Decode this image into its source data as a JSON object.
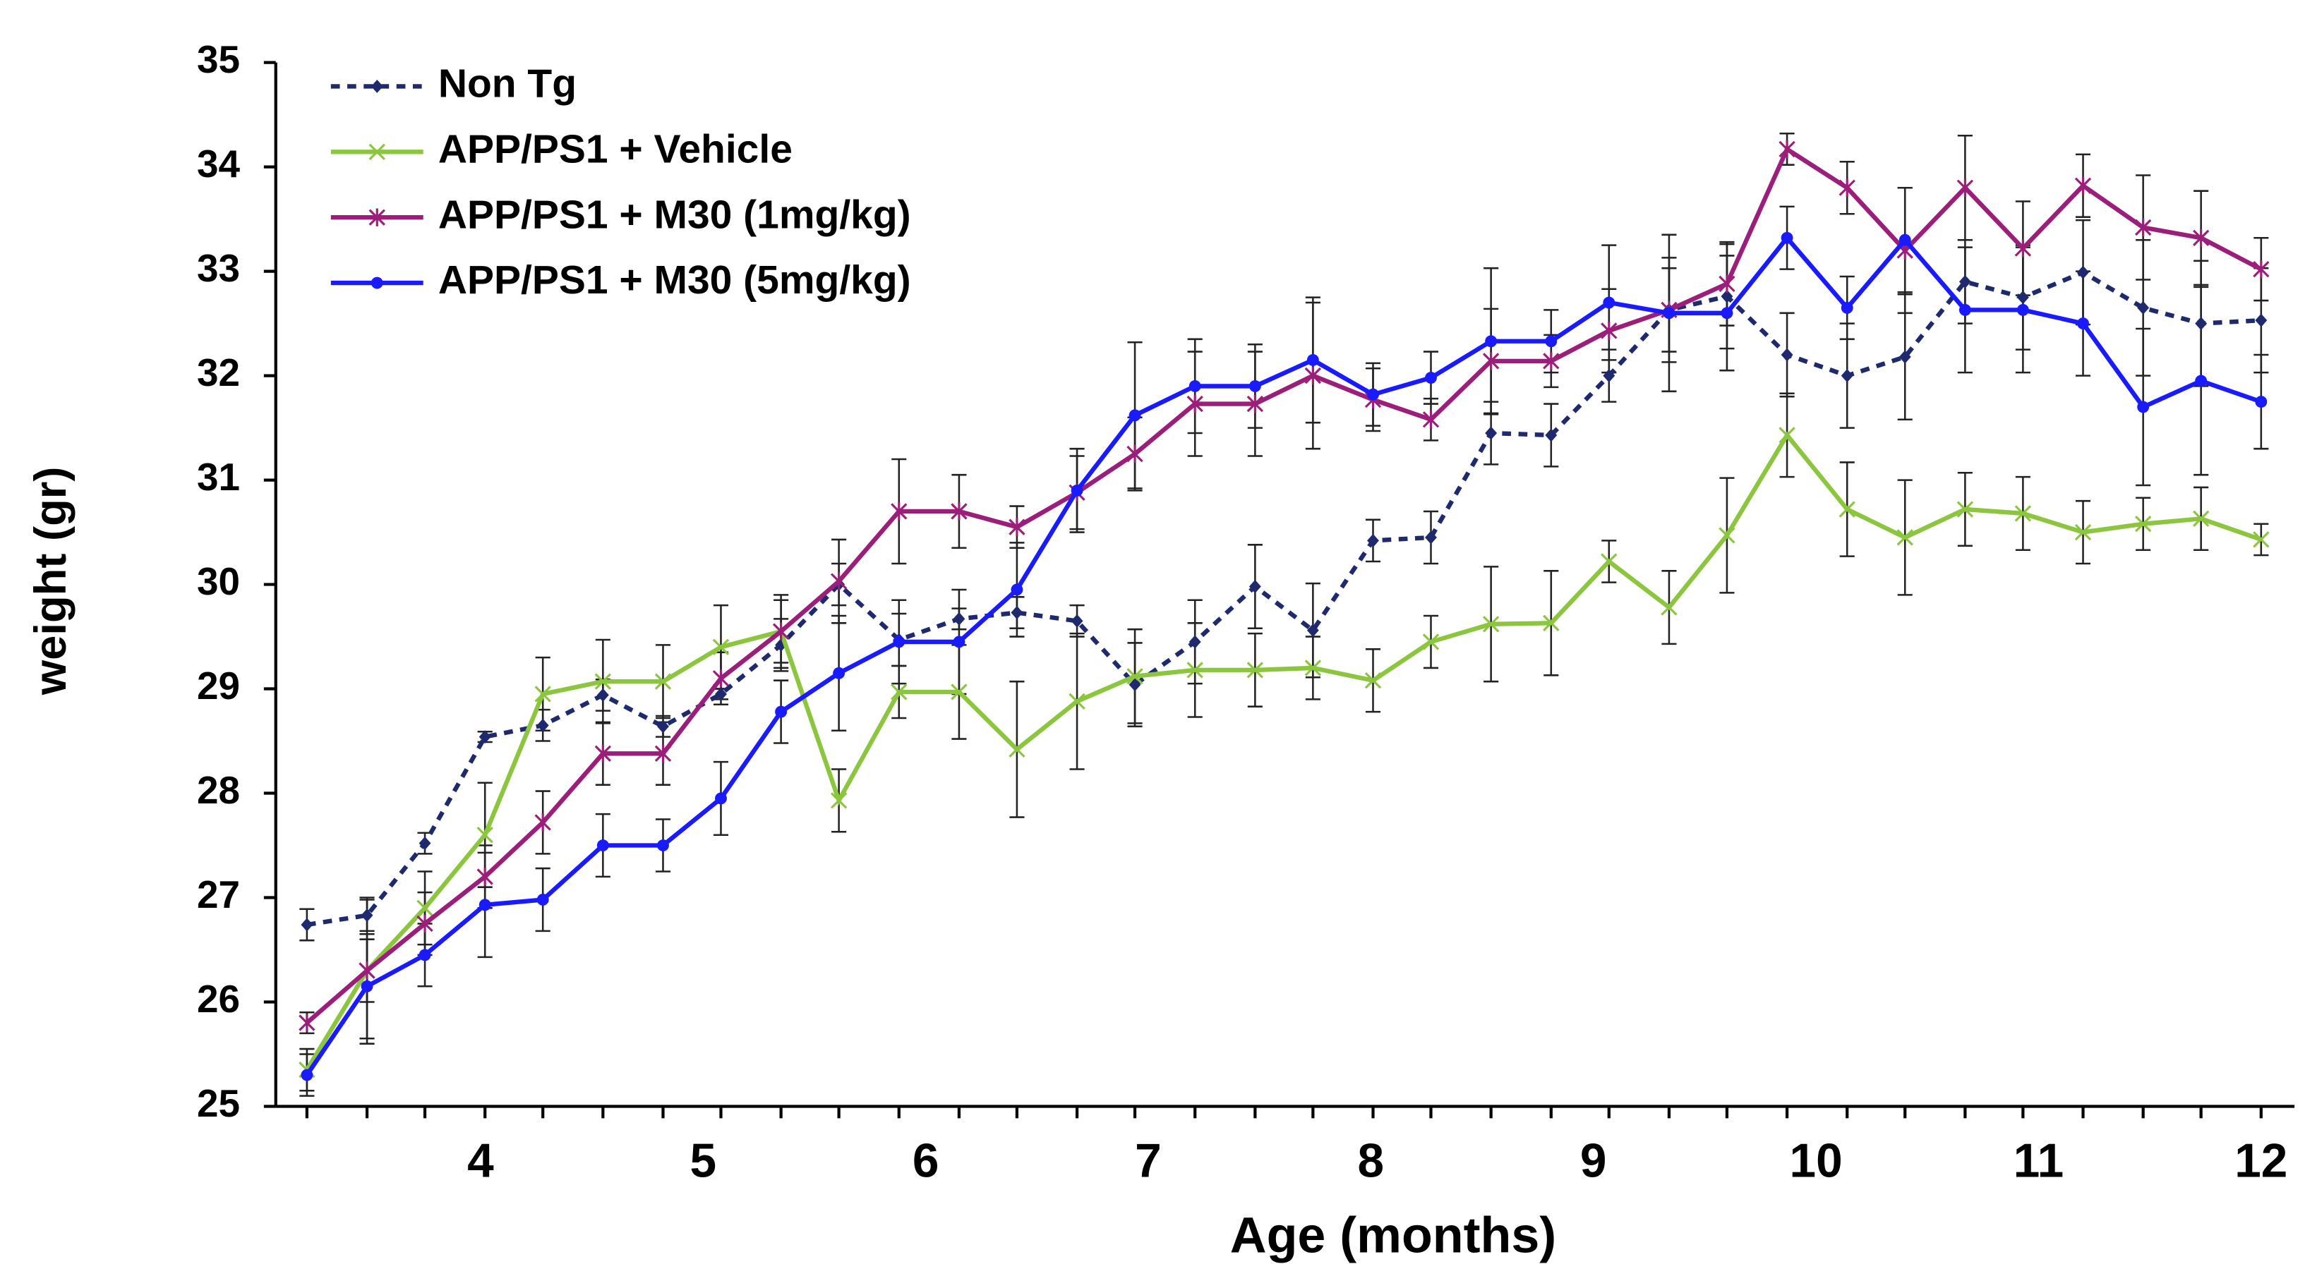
{
  "chart_data": {
    "type": "line",
    "xlabel": "Age (months)",
    "ylabel": "weight (gr)",
    "x": [
      3.22,
      3.49,
      3.75,
      4.02,
      4.28,
      4.55,
      4.82,
      5.08,
      5.35,
      5.61,
      5.88,
      6.15,
      6.41,
      6.68,
      6.94,
      7.21,
      7.48,
      7.74,
      8.01,
      8.27,
      8.54,
      8.81,
      9.07,
      9.34,
      9.6,
      9.87,
      10.14,
      10.4,
      10.67,
      10.93,
      11.2,
      11.47,
      11.73,
      12.0
    ],
    "xlim": [
      3.08,
      12.15
    ],
    "xticks": [
      4,
      5,
      6,
      7,
      8,
      9,
      10,
      11,
      12
    ],
    "ylim": [
      25,
      35
    ],
    "yticks": [
      25,
      26,
      27,
      28,
      29,
      30,
      31,
      32,
      33,
      34,
      35
    ],
    "legend": "upper left",
    "series": [
      {
        "name": "Non Tg",
        "color": "#1f2a6e",
        "linestyle": "dashed",
        "marker": "diamond",
        "values": [
          26.74,
          26.83,
          27.52,
          28.54,
          28.65,
          28.94,
          28.64,
          28.95,
          29.42,
          30.0,
          29.47,
          29.67,
          29.73,
          29.65,
          29.04,
          29.45,
          29.98,
          29.56,
          30.42,
          30.45,
          31.45,
          31.43,
          32.0,
          32.63,
          32.76,
          32.2,
          32.0,
          32.18,
          32.9,
          32.75,
          32.99,
          32.65,
          32.5,
          32.53
        ],
        "errors": [
          0.15,
          0.15,
          0.1,
          0.05,
          0.15,
          0.15,
          0.1,
          0.05,
          0.25,
          0.2,
          0.25,
          0.1,
          0.15,
          0.15,
          0.4,
          0.4,
          0.4,
          0.45,
          0.2,
          0.25,
          0.3,
          0.3,
          0.25,
          0.5,
          0.5,
          0.4,
          0.5,
          0.6,
          0.4,
          0.5,
          0.5,
          0.65,
          0.6,
          0.5
        ]
      },
      {
        "name": "APP/PS1 + Vehicle",
        "color": "#8cc63f",
        "linestyle": "solid",
        "marker": "x",
        "values": [
          25.35,
          26.3,
          26.9,
          27.6,
          28.95,
          29.07,
          29.07,
          29.4,
          29.55,
          27.93,
          28.97,
          28.97,
          28.42,
          28.88,
          29.12,
          29.18,
          29.18,
          29.2,
          29.08,
          29.45,
          29.62,
          29.63,
          30.22,
          29.78,
          30.47,
          31.43,
          30.72,
          30.45,
          30.72,
          30.68,
          30.5,
          30.58,
          30.63,
          30.43
        ],
        "errors": [
          0.2,
          0.7,
          0.35,
          0.5,
          0.35,
          0.4,
          0.35,
          0.4,
          0.35,
          0.3,
          0.25,
          0.45,
          0.65,
          0.65,
          0.45,
          0.45,
          0.35,
          0.3,
          0.3,
          0.25,
          0.55,
          0.5,
          0.2,
          0.35,
          0.55,
          0.4,
          0.45,
          0.55,
          0.35,
          0.35,
          0.3,
          0.25,
          0.3,
          0.15
        ]
      },
      {
        "name": "APP/PS1 + M30 (1mg/kg)",
        "color": "#9b1f7a",
        "linestyle": "solid",
        "marker": "asterisk",
        "values": [
          25.8,
          26.3,
          26.75,
          27.2,
          27.72,
          28.38,
          28.38,
          29.1,
          29.55,
          30.03,
          30.7,
          30.7,
          30.55,
          30.88,
          31.25,
          31.73,
          31.73,
          32.0,
          31.77,
          31.58,
          32.14,
          32.14,
          32.43,
          32.63,
          32.88,
          34.17,
          33.8,
          33.2,
          33.8,
          33.22,
          33.82,
          33.42,
          33.32,
          33.02
        ],
        "errors": [
          0.1,
          0.3,
          0.3,
          0.3,
          0.3,
          0.3,
          0.3,
          0.25,
          0.3,
          0.4,
          0.5,
          0.35,
          0.2,
          0.35,
          0.35,
          0.5,
          0.5,
          0.7,
          0.3,
          0.2,
          0.5,
          0.25,
          0.4,
          0.4,
          0.4,
          0.15,
          0.25,
          0.6,
          0.5,
          0.45,
          0.3,
          0.5,
          0.45,
          0.3
        ]
      },
      {
        "name": "APP/PS1 + M30 (5mg/kg)",
        "color": "#1a1aff",
        "linestyle": "solid",
        "marker": "circle",
        "values": [
          25.3,
          26.15,
          26.45,
          26.93,
          26.98,
          27.5,
          27.5,
          27.95,
          28.78,
          29.15,
          29.45,
          29.45,
          29.95,
          30.9,
          31.62,
          31.9,
          31.9,
          32.15,
          31.82,
          31.98,
          32.33,
          32.33,
          32.7,
          32.6,
          32.6,
          33.32,
          32.65,
          33.3,
          32.63,
          32.63,
          32.5,
          31.7,
          31.95,
          31.75
        ],
        "errors": [
          0.2,
          0.5,
          0.3,
          0.5,
          0.3,
          0.3,
          0.25,
          0.35,
          0.3,
          0.55,
          0.4,
          0.5,
          0.45,
          0.4,
          0.7,
          0.45,
          0.4,
          0.6,
          0.3,
          0.25,
          0.7,
          0.3,
          0.55,
          0.75,
          0.55,
          0.3,
          0.3,
          0.5,
          0.6,
          0.6,
          0.5,
          0.75,
          0.9,
          0.45
        ]
      }
    ]
  }
}
